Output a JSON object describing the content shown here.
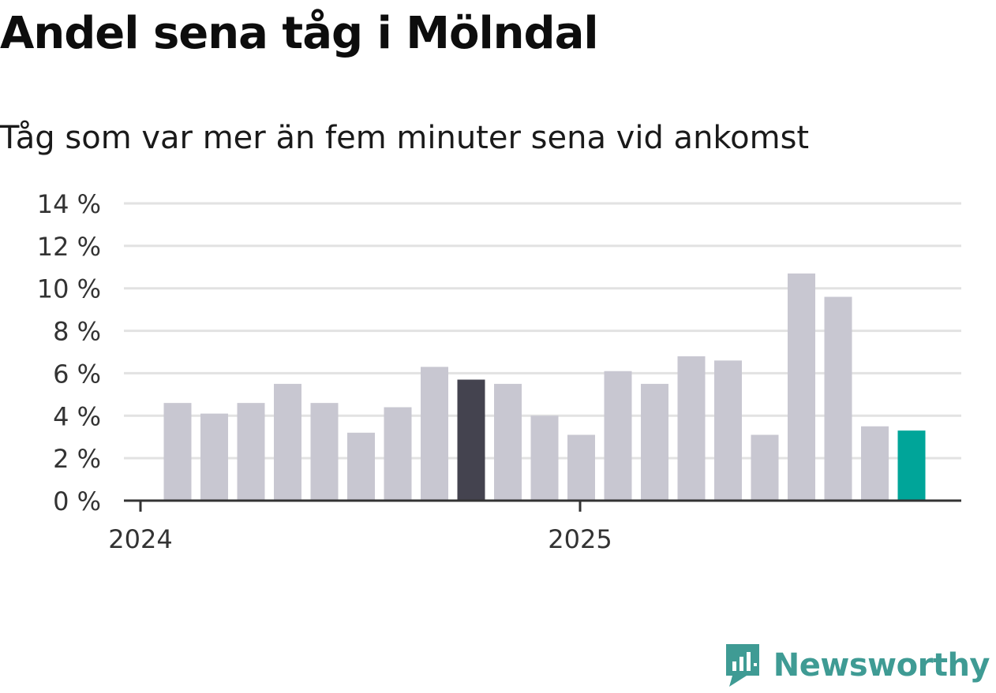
{
  "title": "Andel sena tåg i Mölndal",
  "subtitle": "Tåg som var mer än fem minuter sena vid ankomst",
  "brand": {
    "name": "Newsworthy",
    "icon": "newsworthy-logo-icon",
    "color": "#3f9b94"
  },
  "colors": {
    "bar": "#c8c7d1",
    "highlight_dark": "#44434f",
    "highlight_last": "#00a599",
    "grid": "#e2e2e2",
    "axis": "#333333"
  },
  "chart_data": {
    "type": "bar",
    "title": "Andel sena tåg i Mölndal",
    "subtitle": "Tåg som var mer än fem minuter sena vid ankomst",
    "xlabel": "",
    "ylabel": "",
    "ylim": [
      0,
      14
    ],
    "yticks": [
      0,
      2,
      4,
      6,
      8,
      10,
      12,
      14
    ],
    "ytick_labels": [
      "0 %",
      "2 %",
      "4 %",
      "6 %",
      "8 %",
      "10 %",
      "12 %",
      "14 %"
    ],
    "xtick_labels": [
      "2024",
      "2025"
    ],
    "unit": "%",
    "grid": true,
    "values": [
      4.6,
      4.1,
      4.6,
      5.5,
      4.6,
      3.2,
      4.4,
      6.3,
      5.7,
      5.5,
      4.0,
      3.1,
      6.1,
      5.5,
      6.8,
      6.6,
      3.1,
      10.7,
      9.6,
      3.5,
      3.3
    ],
    "highlight": {
      "dark": [
        8
      ],
      "last": [
        20
      ]
    }
  }
}
